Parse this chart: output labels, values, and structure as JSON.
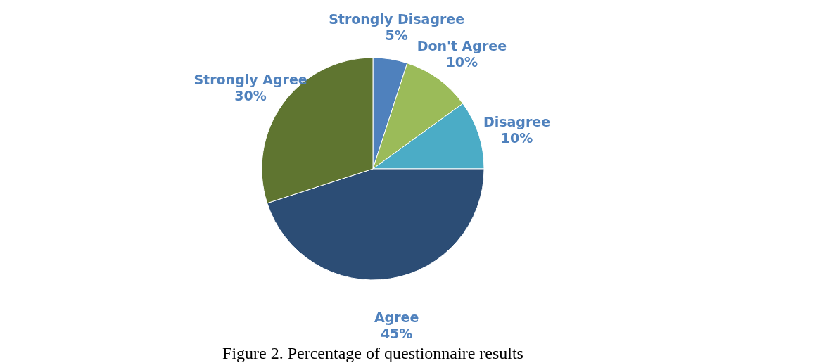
{
  "chart_data": {
    "type": "pie",
    "title": "Figure 2. Percentage of questionnaire results",
    "categories": [
      "Strongly Disagree",
      "Don't Agree",
      "Disagree",
      "Agree",
      "Strongly Agree"
    ],
    "values": [
      5,
      10,
      10,
      45,
      30
    ],
    "colors": [
      "#4f81bd",
      "#9bbb59",
      "#4bacc6",
      "#2c4d75",
      "#5f7530"
    ],
    "value_labels": [
      "5%",
      "10%",
      "10%",
      "45%",
      "30%"
    ]
  }
}
